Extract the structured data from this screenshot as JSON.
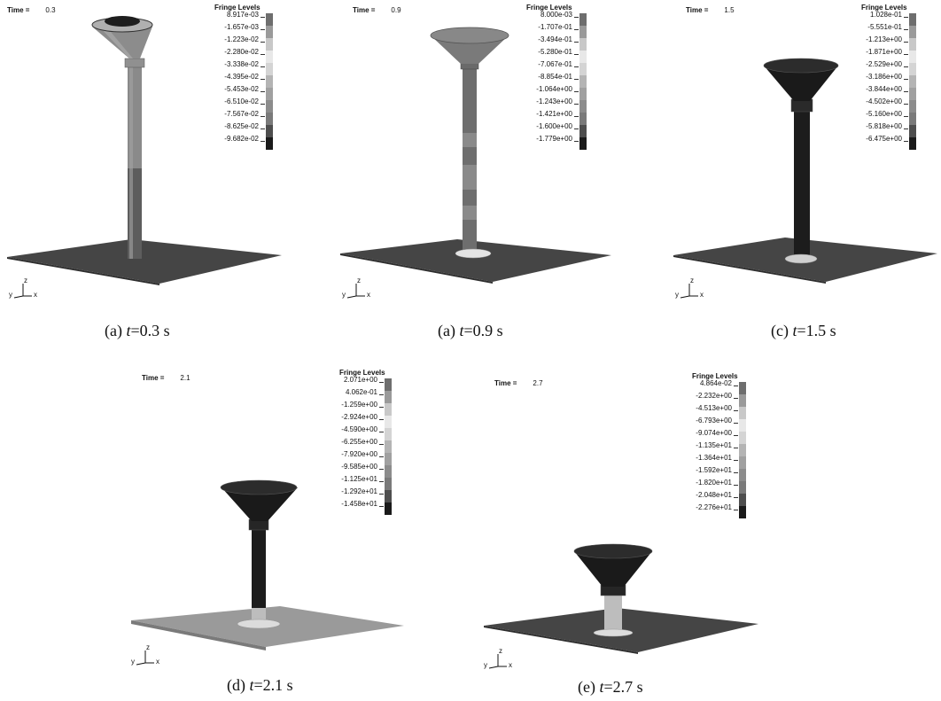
{
  "panels": [
    {
      "id": "a1",
      "time_label": "Time =",
      "time_value": "0.3",
      "legend_title": "Fringe Levels",
      "levels": [
        "8.917e-03",
        "-1.657e-03",
        "-1.223e-02",
        "-2.280e-02",
        "-3.338e-02",
        "-4.395e-02",
        "-5.453e-02",
        "-6.510e-02",
        "-7.567e-02",
        "-8.625e-02",
        "-9.682e-02"
      ],
      "caption_prefix": "(a) ",
      "caption_var": "t",
      "caption_value": "=0.3 s"
    },
    {
      "id": "a2",
      "time_label": "Time =",
      "time_value": "0.9",
      "legend_title": "Fringe Levels",
      "levels": [
        "8.000e-03",
        "-1.707e-01",
        "-3.494e-01",
        "-5.280e-01",
        "-7.067e-01",
        "-8.854e-01",
        "-1.064e+00",
        "-1.243e+00",
        "-1.421e+00",
        "-1.600e+00",
        "-1.779e+00"
      ],
      "caption_prefix": "(a) ",
      "caption_var": "t",
      "caption_value": "=0.9 s"
    },
    {
      "id": "c",
      "time_label": "Time =",
      "time_value": "1.5",
      "legend_title": "Fringe Levels",
      "levels": [
        "1.028e-01",
        "-5.551e-01",
        "-1.213e+00",
        "-1.871e+00",
        "-2.529e+00",
        "-3.186e+00",
        "-3.844e+00",
        "-4.502e+00",
        "-5.160e+00",
        "-5.818e+00",
        "-6.475e+00"
      ],
      "caption_prefix": "(c) ",
      "caption_var": "t",
      "caption_value": "=1.5 s"
    },
    {
      "id": "d",
      "time_label": "Time =",
      "time_value": "2.1",
      "legend_title": "Fringe Levels",
      "levels": [
        "2.071e+00",
        "4.062e-01",
        "-1.259e+00",
        "-2.924e+00",
        "-4.590e+00",
        "-6.255e+00",
        "-7.920e+00",
        "-9.585e+00",
        "-1.125e+01",
        "-1.292e+01",
        "-1.458e+01"
      ],
      "caption_prefix": "(d) ",
      "caption_var": "t",
      "caption_value": "=2.1 s"
    },
    {
      "id": "e",
      "time_label": "Time =",
      "time_value": "2.7",
      "legend_title": "Fringe Levels",
      "levels": [
        "4.864e-02",
        "-2.232e+00",
        "-4.513e+00",
        "-6.793e+00",
        "-9.074e+00",
        "-1.135e+01",
        "-1.364e+01",
        "-1.592e+01",
        "-1.820e+01",
        "-2.048e+01",
        "-2.276e+01"
      ],
      "caption_prefix": "(e) ",
      "caption_var": "t",
      "caption_value": "=2.7 s"
    }
  ],
  "legend_colors": [
    "#6e6e6e",
    "#9a9a9a",
    "#c8c8c8",
    "#e8e8e8",
    "#d4d4d4",
    "#b4b4b4",
    "#a0a0a0",
    "#8c8c8c",
    "#7a7a7a",
    "#4e4e4e",
    "#1a1a1a"
  ],
  "axis_labels": {
    "z": "z",
    "y": "y",
    "x": "x"
  }
}
